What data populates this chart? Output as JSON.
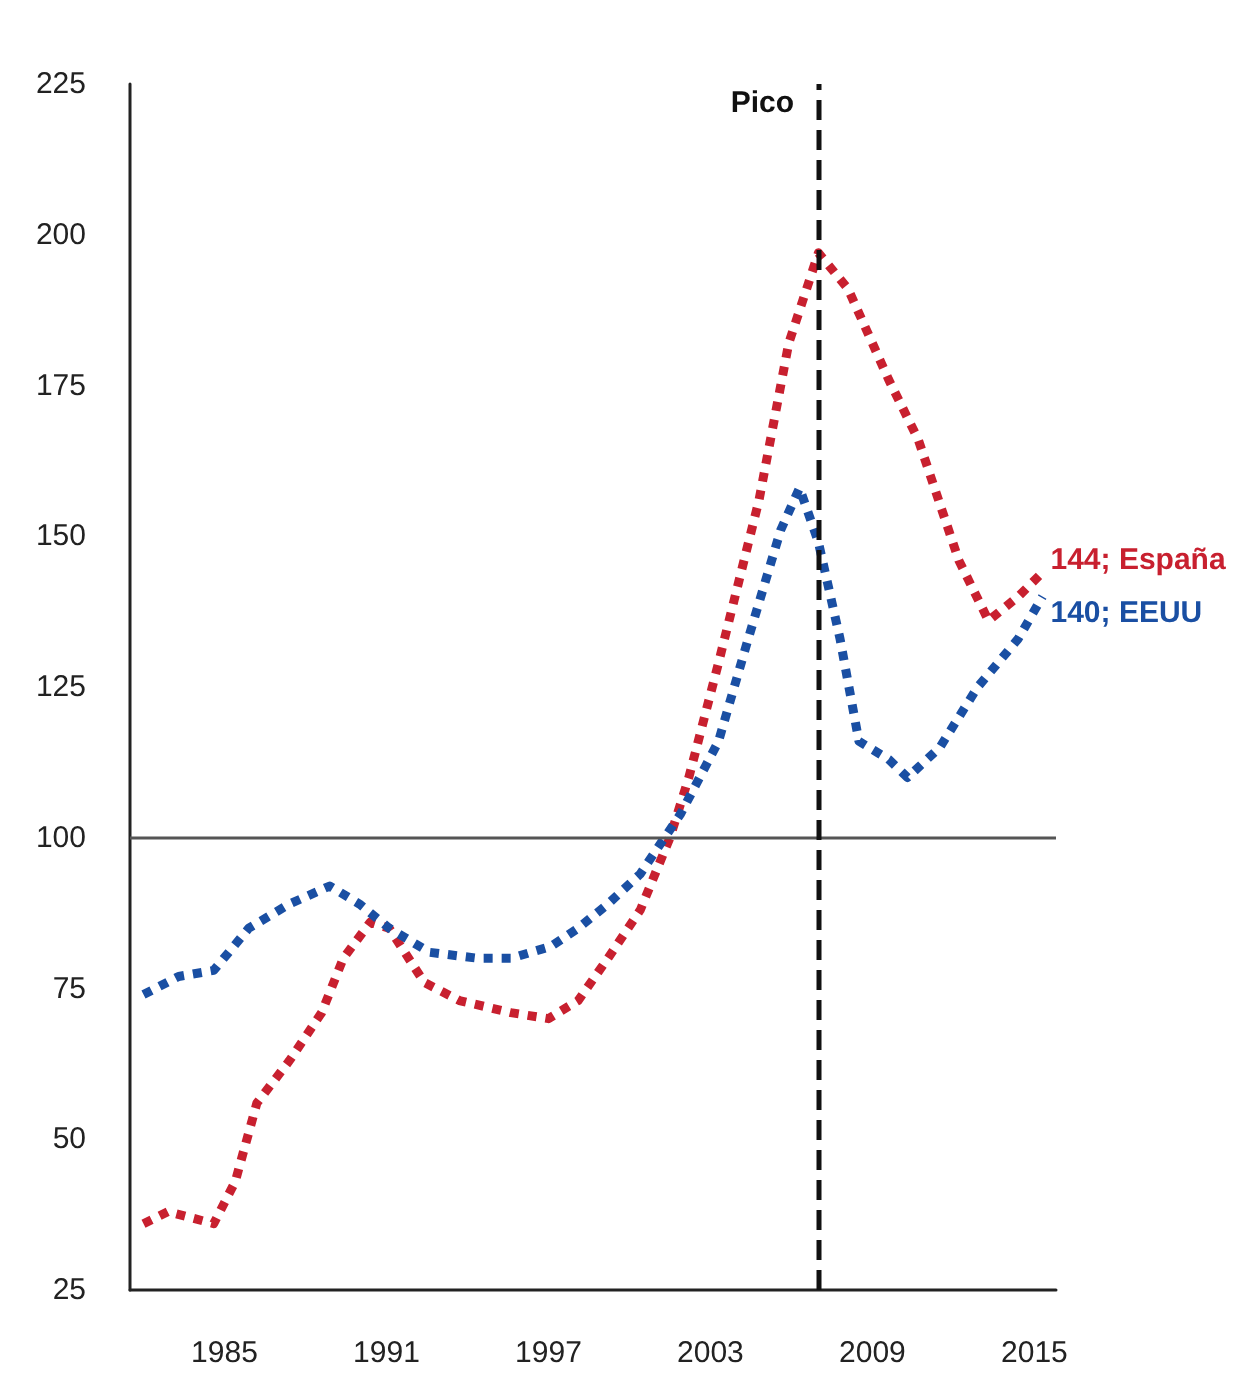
{
  "chart_data": {
    "type": "line",
    "line_style": "dotted",
    "marker": "none",
    "grid": false,
    "xlim": [
      1981.5,
      2015.8
    ],
    "xticks": [
      1985,
      1991,
      1997,
      2003,
      2009,
      2015
    ],
    "ylim": [
      25,
      225
    ],
    "yticks": [
      25,
      50,
      75,
      100,
      125,
      150,
      175,
      200,
      225
    ],
    "series": [
      {
        "color": "#c8202f",
        "x": [
          1982.0,
          1982.9,
          1984.6,
          1985.4,
          1986.2,
          1987.4,
          1988.6,
          1989.4,
          1990.4,
          1991.1,
          1992.4,
          1993.7,
          1995.6,
          1997.0,
          1998.1,
          1999.2,
          2000.4,
          2001.5,
          2002.2,
          2003.3,
          2004.8,
          2005.9,
          2007.0,
          2008.1,
          2009.6,
          2010.7,
          2012.2,
          2013.3,
          2014.4,
          2015.3
        ],
        "values": [
          36,
          38,
          36,
          43,
          56,
          63,
          71,
          80,
          86,
          85,
          76,
          73,
          71,
          70,
          73,
          80,
          88,
          100,
          110,
          129,
          156,
          182,
          197,
          191,
          176,
          166,
          146,
          136,
          140,
          144
        ]
      },
      {
        "color": "#1a4fa3",
        "x": [
          1982.0,
          1983.3,
          1984.6,
          1985.9,
          1987.4,
          1988.9,
          1990.0,
          1991.1,
          1992.6,
          1994.4,
          1995.6,
          1997.1,
          1998.1,
          1999.2,
          2000.4,
          2001.9,
          2003.3,
          2004.4,
          2005.6,
          2006.3,
          2007.0,
          2007.8,
          2008.5,
          2009.6,
          2010.3,
          2011.5,
          2012.9,
          2014.4,
          2015.3
        ],
        "values": [
          74,
          77,
          78,
          85,
          89,
          92,
          89,
          85,
          81,
          80,
          80,
          82,
          85,
          89,
          94,
          104,
          116,
          133,
          151,
          158,
          149,
          133,
          116,
          113,
          110,
          115,
          125,
          133,
          140
        ]
      }
    ],
    "ref_lines": [
      {
        "axis": "y",
        "value": 100,
        "color": "#555555",
        "line_style": "solid"
      },
      {
        "axis": "x",
        "value": 2007,
        "label": "Pico",
        "color": "#111111",
        "line_style": "dashed"
      }
    ],
    "annotations": [
      {
        "text": "144; España",
        "x": 2015.3,
        "y": 144
      },
      {
        "text": "140; EEUU",
        "x": 2015.3,
        "y": 140
      }
    ]
  }
}
